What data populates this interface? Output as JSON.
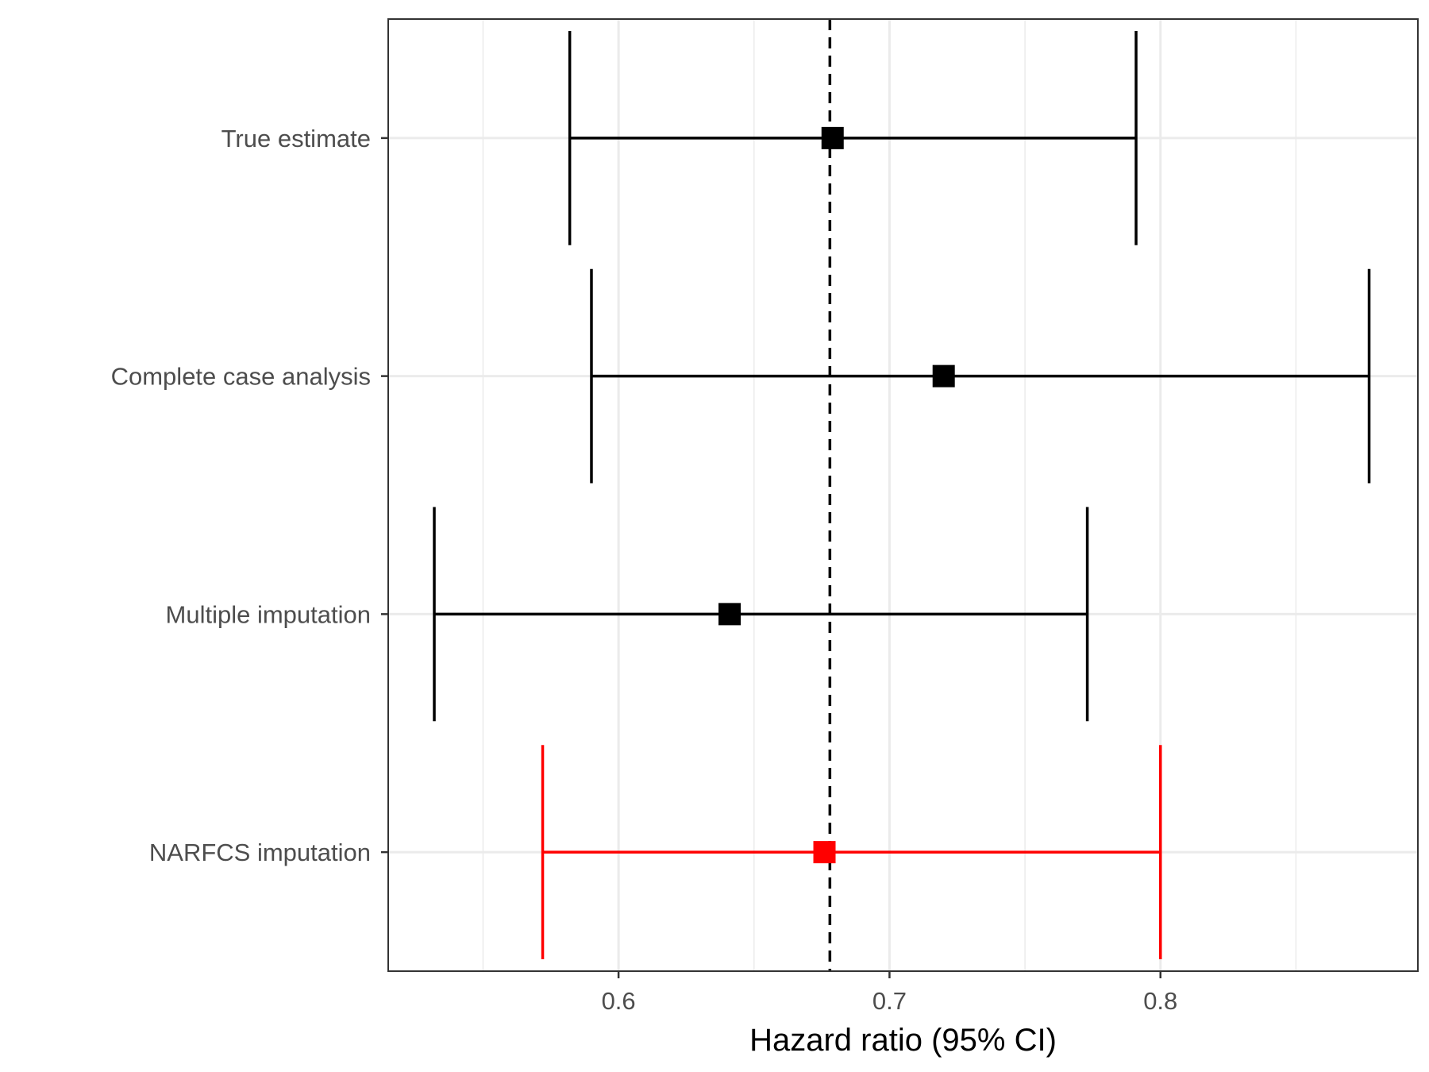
{
  "chart_data": {
    "type": "forest",
    "title": "",
    "xlabel": "Hazard ratio (95% CI)",
    "ylabel": "",
    "xlim": [
      0.515,
      0.895
    ],
    "x_ticks": [
      0.6,
      0.7,
      0.8
    ],
    "x_tick_labels": [
      "0.6",
      "0.7",
      "0.8"
    ],
    "x_minor_ticks": [
      0.55,
      0.65,
      0.75,
      0.85
    ],
    "reference_line": {
      "x": 0.678,
      "style": "dashed"
    },
    "grid": true,
    "rows": [
      {
        "label": "True estimate",
        "estimate": 0.679,
        "lower": 0.582,
        "upper": 0.791,
        "color": "#000000"
      },
      {
        "label": "Complete case analysis",
        "estimate": 0.72,
        "lower": 0.59,
        "upper": 0.877,
        "color": "#000000"
      },
      {
        "label": "Multiple imputation",
        "estimate": 0.641,
        "lower": 0.532,
        "upper": 0.773,
        "color": "#000000"
      },
      {
        "label": "NARFCS imputation",
        "estimate": 0.676,
        "lower": 0.572,
        "upper": 0.8,
        "color": "#ff0000"
      }
    ]
  }
}
